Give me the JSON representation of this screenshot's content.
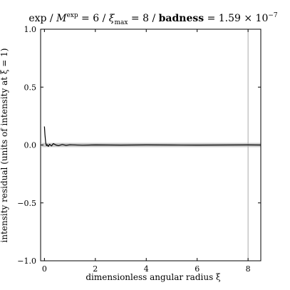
{
  "chart_data": {
    "type": "line",
    "title_parts": {
      "prefix": "exp / ",
      "m": "M",
      "m_sup": "exp",
      "m_eq": " = 6 / ",
      "xi": "ξ",
      "xi_sub": "max",
      "xi_eq": " = 8 / ",
      "badness": "badness",
      "badness_eq": " = 1.59 × 10",
      "badness_exp": "−7"
    },
    "xlabel": "dimensionless angular radius ξ",
    "ylabel": "intensity residual (units of intensity at ξ = 1)",
    "xlim": [
      -0.15,
      8.5
    ],
    "ylim": [
      -1.0,
      1.0
    ],
    "xticks": [
      0,
      2,
      4,
      6,
      8
    ],
    "xtick_labels": [
      "0",
      "2",
      "4",
      "6",
      "8"
    ],
    "yticks": [
      -1.0,
      -0.5,
      0.0,
      0.5,
      1.0
    ],
    "ytick_labels": [
      "−1.0",
      "−0.5",
      "0.0",
      "0.5",
      "1.0"
    ],
    "grid": false,
    "vline": {
      "x": 8.0,
      "color": "#a8a8a8"
    },
    "band": {
      "y_low": -0.018,
      "y_high": 0.018,
      "color": "#bdbdbd"
    },
    "series": [
      {
        "color": "#000000",
        "x": [
          0.0,
          0.02,
          0.05,
          0.08,
          0.11,
          0.15,
          0.2,
          0.28,
          0.35,
          0.45,
          0.55,
          0.7,
          0.85,
          1.0,
          1.5,
          2.0,
          3.0,
          4.0,
          5.0,
          6.0,
          7.0,
          8.0,
          8.5
        ],
        "y": [
          0.16,
          0.09,
          0.02,
          -0.005,
          0.003,
          -0.012,
          0.006,
          -0.008,
          0.012,
          0.0,
          -0.006,
          0.004,
          -0.003,
          0.002,
          -0.002,
          0.001,
          -0.001,
          0.001,
          0.0,
          -0.001,
          0.0,
          0.001,
          0.0
        ]
      }
    ]
  }
}
